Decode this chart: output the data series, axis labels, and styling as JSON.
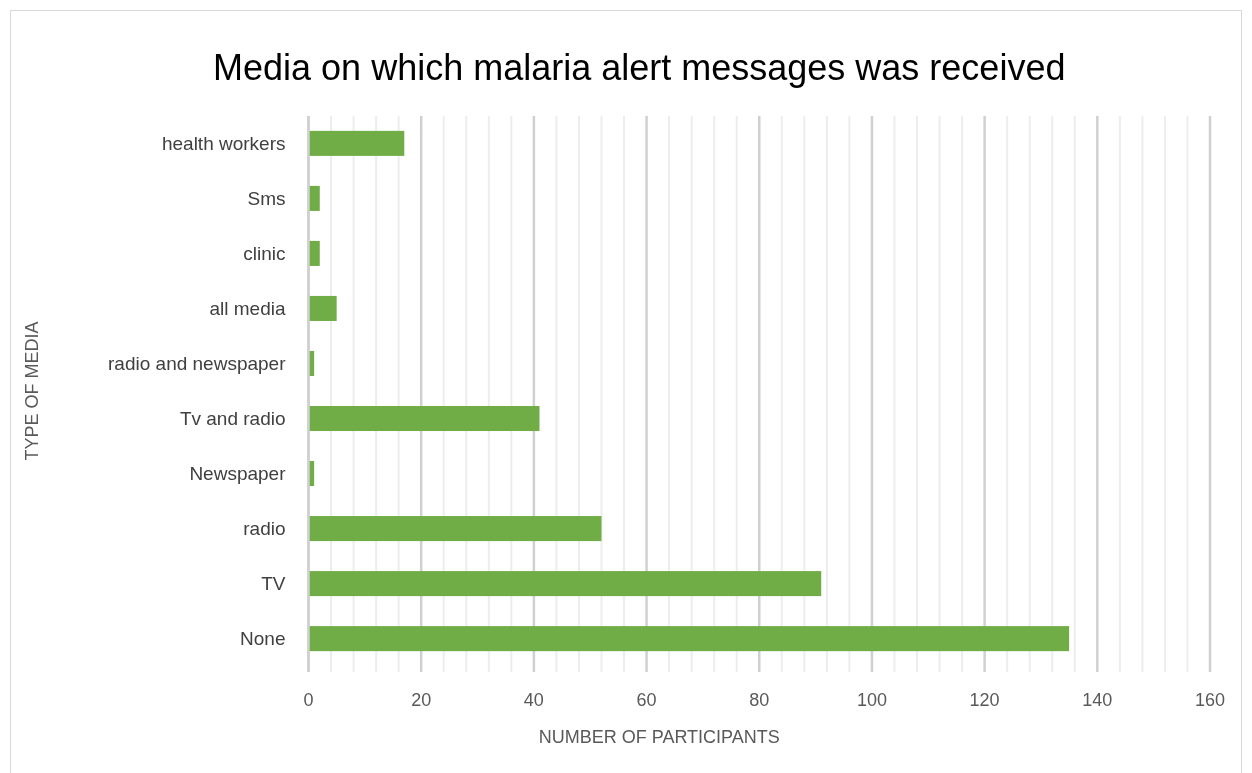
{
  "chart_data": {
    "type": "bar",
    "orientation": "horizontal",
    "title": "Media on which malaria alert messages was received",
    "xlabel": "NUMBER OF PARTICIPANTS",
    "ylabel": "TYPE OF MEDIA",
    "categories": [
      "health workers",
      "Sms",
      "clinic",
      "all media",
      "radio and newspaper",
      "Tv and radio",
      "Newspaper",
      "radio",
      "TV",
      "None"
    ],
    "values": [
      17,
      2,
      2,
      5,
      1,
      41,
      1,
      52,
      91,
      135
    ],
    "color": "#70ad47",
    "xlim": [
      0,
      160
    ],
    "xticks": [
      0,
      {
        "value": 4,
        "label": null
      },
      {
        "value": 8,
        "label": null
      },
      {
        "value": 12,
        "label": null
      },
      {
        "value": 16,
        "label": null
      },
      20,
      {
        "value": 24,
        "label": null
      },
      {
        "value": 28,
        "label": null
      },
      {
        "value": 32,
        "label": null
      },
      {
        "value": 36,
        "label": null
      },
      40,
      {
        "value": 44,
        "label": null
      },
      {
        "value": 48,
        "label": null
      },
      {
        "value": 52,
        "label": null
      },
      {
        "value": 56,
        "label": null
      },
      60,
      {
        "value": 64,
        "label": null
      },
      {
        "value": 68,
        "label": null
      },
      {
        "value": 72,
        "label": null
      },
      {
        "value": 76,
        "label": null
      },
      80,
      {
        "value": 84,
        "label": null
      },
      {
        "value": 88,
        "label": null
      },
      {
        "value": 92,
        "label": null
      },
      {
        "value": 96,
        "label": null
      },
      100,
      {
        "value": 104,
        "label": null
      },
      {
        "value": 108,
        "label": null
      },
      {
        "value": 112,
        "label": null
      },
      {
        "value": 116,
        "label": null
      },
      120,
      {
        "value": 124,
        "label": null
      },
      {
        "value": 128,
        "label": null
      },
      {
        "value": 132,
        "label": null
      },
      {
        "value": 136,
        "label": null
      },
      140,
      {
        "value": 144,
        "label": null
      },
      {
        "value": 148,
        "label": null
      },
      {
        "value": 152,
        "label": null
      },
      {
        "value": 156,
        "label": null
      },
      160
    ],
    "grid": "x"
  }
}
